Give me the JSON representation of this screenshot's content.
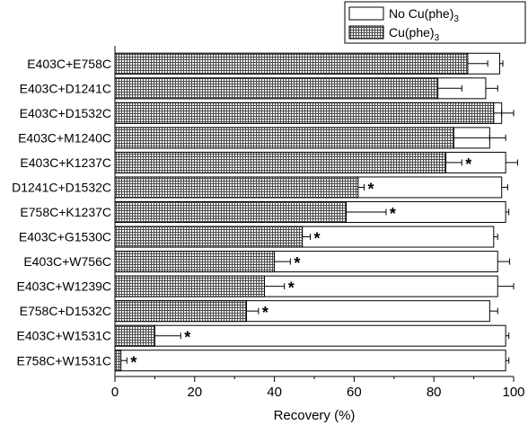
{
  "chart_data": {
    "type": "bar",
    "orientation": "horizontal",
    "xlabel": "Recovery (%)",
    "xlim": [
      0,
      100
    ],
    "xticks": [
      "0",
      "20",
      "40",
      "60",
      "80",
      "100"
    ],
    "grid": false,
    "legend_position": "top-right",
    "categories": [
      "E403C+E758C",
      "E403C+D1241C",
      "E403C+D1532C",
      "E403C+M1240C",
      "E403C+K1237C",
      "D1241C+D1532C",
      "E758C+K1237C",
      "E403C+G1530C",
      "E403C+W756C",
      "E403C+W1239C",
      "E758C+D1532C",
      "E403C+W1531C",
      "E758C+W1531C"
    ],
    "series": [
      {
        "name": "No Cu(phe)",
        "name_sub": "3",
        "fill": "#ffffff",
        "pattern": "none",
        "values": [
          96.5,
          93,
          97,
          94,
          98,
          97,
          98,
          95,
          96,
          96,
          94,
          98,
          98
        ],
        "errors": [
          0.8,
          3,
          3,
          4,
          3,
          1.5,
          0.8,
          1,
          3,
          4,
          2,
          0.8,
          0.8
        ]
      },
      {
        "name": "Cu(phe)",
        "name_sub": "3",
        "fill": "#777777",
        "pattern": "crosshatch",
        "values": [
          88.5,
          81,
          95,
          85,
          83,
          61,
          58,
          47,
          40,
          37.5,
          33,
          10,
          1.5
        ],
        "errors": [
          5,
          6,
          2,
          9,
          4,
          1.5,
          10,
          2,
          4,
          5,
          3,
          6.5,
          1.5
        ],
        "significance": [
          "",
          "",
          "",
          "",
          "*",
          "*",
          "*",
          "*",
          "*",
          "*",
          "*",
          "*",
          "*"
        ]
      }
    ]
  }
}
